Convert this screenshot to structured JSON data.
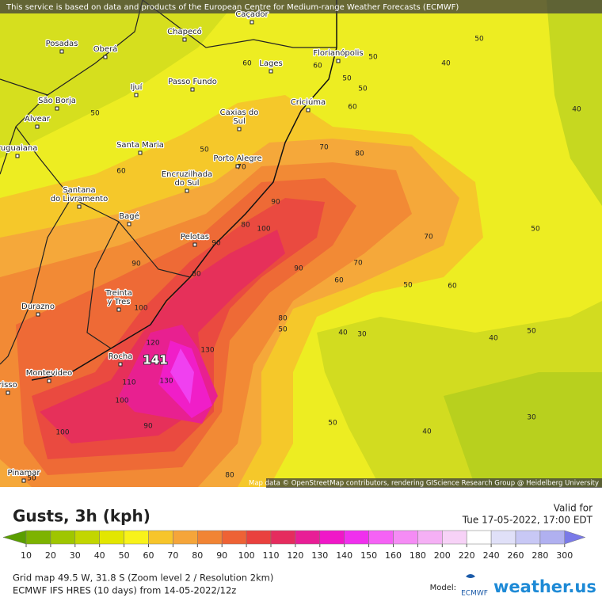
{
  "header": {
    "notice": "This service is based on data and products of the European Centre for Medium-range Weather Forecasts (ECMWF)",
    "attribution": "Map data © OpenStreetMap contributors, rendering GIScience Research Group @ Heidelberg University"
  },
  "map": {
    "cities": [
      [
        "Caçador"
      ],
      [
        "Chapecó"
      ],
      [
        "Posadas"
      ],
      [
        "Oberá"
      ],
      [
        "Florianópolis"
      ],
      [
        "Lages"
      ],
      [
        "Ijuí"
      ],
      [
        "Passo Fundo"
      ],
      [
        "São Borja"
      ],
      [
        "Criciúma"
      ],
      [
        "Caxias do",
        "Sul"
      ],
      [
        "Alvear"
      ],
      [
        "ruguaiana"
      ],
      [
        "Santa Maria"
      ],
      [
        "Porto Alegre"
      ],
      [
        "Encruzilhada",
        "do Sul"
      ],
      [
        "Santana",
        "do Livramento"
      ],
      [
        "Bagé"
      ],
      [
        "Pelotas"
      ],
      [
        "Treinta",
        "y Tres"
      ],
      [
        "Durazno"
      ],
      [
        "Rocha"
      ],
      [
        "Montevideo"
      ],
      [
        "Pinamar"
      ],
      [
        "risso"
      ]
    ],
    "contour_labels": [
      50,
      50,
      40,
      60,
      60,
      50,
      50,
      40,
      60,
      50,
      70,
      80,
      50,
      60,
      70,
      90,
      80,
      100,
      70,
      50,
      90,
      90,
      90,
      70,
      60,
      50,
      60,
      80,
      100,
      80,
      50,
      40,
      30,
      50,
      40,
      120,
      130,
      110,
      130,
      100,
      90,
      100,
      50,
      40,
      30,
      80,
      50
    ],
    "max_label": "141"
  },
  "legend": {
    "title": "Gusts, 3h (kph)",
    "valid_label": "Valid for",
    "valid_time": "Tue 17-05-2022, 17:00 EDT",
    "ticks": [
      10,
      20,
      30,
      40,
      50,
      60,
      70,
      80,
      90,
      100,
      110,
      120,
      130,
      140,
      150,
      160,
      180,
      200,
      220,
      240,
      260,
      280,
      300
    ],
    "colors": [
      "#5a9e00",
      "#7db300",
      "#9fc600",
      "#c2d600",
      "#e3e600",
      "#f8f21a",
      "#f7c52a",
      "#f5a53a",
      "#f18434",
      "#ee6235",
      "#e9413e",
      "#e52c5e",
      "#e81e96",
      "#f018c8",
      "#f030ee",
      "#f562f5",
      "#f58cf5",
      "#f5b0f5",
      "#f7d2f7",
      "#ffffff",
      "#e0e0f8",
      "#c8c8f5",
      "#b0b0f0",
      "#9898ee",
      "#7a7ae8"
    ]
  },
  "footer": {
    "grid": "Grid map 49.5 W, 31.8 S (Zoom level 2 / Resolution 2km)",
    "model_run": "ECMWF IFS HRES (10 days) from 14-05-2022/12z",
    "model_label": "Model:",
    "model_name": "ECMWF",
    "brand": "weather.us"
  }
}
